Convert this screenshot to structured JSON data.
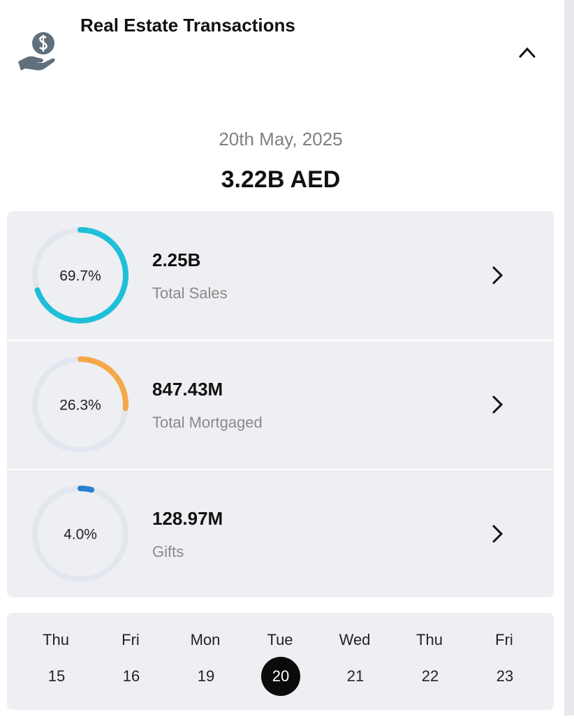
{
  "header": {
    "title": "Real Estate Transactions"
  },
  "summary": {
    "date": "20th May, 2025",
    "total": "3.22B AED"
  },
  "items": [
    {
      "share": {
        "value": 69.7,
        "label": "69.7%"
      },
      "amount": "2.25B",
      "label": "Total Sales",
      "color": "#1fbfd9"
    },
    {
      "share": {
        "value": 26.3,
        "label": "26.3%"
      },
      "amount": "847.43M",
      "label": "Total Mortgaged",
      "color": "#f5a84a"
    },
    {
      "share": {
        "value": 4.0,
        "label": "4.0%"
      },
      "amount": "128.97M",
      "label": "Gifts",
      "color": "#2a7fd4"
    }
  ],
  "calendar": {
    "days": [
      {
        "weekday": "Thu",
        "day": "15",
        "selected": false
      },
      {
        "weekday": "Fri",
        "day": "16",
        "selected": false
      },
      {
        "weekday": "Mon",
        "day": "19",
        "selected": false
      },
      {
        "weekday": "Tue",
        "day": "20",
        "selected": true
      },
      {
        "weekday": "Wed",
        "day": "21",
        "selected": false
      },
      {
        "weekday": "Thu",
        "day": "22",
        "selected": false
      },
      {
        "weekday": "Fri",
        "day": "23",
        "selected": false
      }
    ]
  }
}
